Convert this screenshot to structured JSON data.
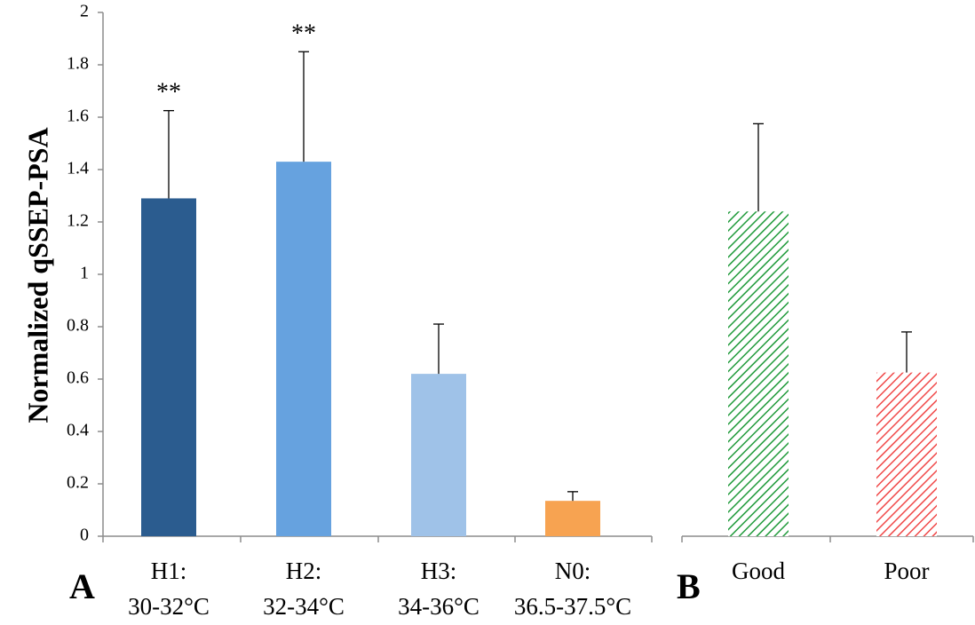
{
  "chart_data": [
    {
      "type": "bar",
      "panel_label": "A",
      "ylabel": "Normalized qSSEP-PSA",
      "ylim": [
        0,
        2
      ],
      "yticks": [
        "0",
        "0.2",
        "0.4",
        "0.6",
        "0.8",
        "1",
        "1.2",
        "1.4",
        "1.6",
        "1.8",
        "2"
      ],
      "categories": [
        {
          "line1": "H1:",
          "line2": "30-32°C"
        },
        {
          "line1": "H2:",
          "line2": "32-34°C"
        },
        {
          "line1": "H3:",
          "line2": "34-36°C"
        },
        {
          "line1": "N0:",
          "line2": "36.5-37.5°C"
        }
      ],
      "values": [
        1.29,
        1.43,
        0.62,
        0.135
      ],
      "error_upper": [
        1.625,
        1.85,
        0.81,
        0.17
      ],
      "significance": [
        "**",
        "**",
        "",
        ""
      ],
      "colors": [
        "#2b5c8f",
        "#66a2df",
        "#9fc2e8",
        "#f7a351"
      ],
      "grid": false
    },
    {
      "type": "bar",
      "panel_label": "B",
      "ylim": [
        0,
        2
      ],
      "categories": [
        {
          "line1": "Good",
          "line2": ""
        },
        {
          "line1": "Poor",
          "line2": ""
        }
      ],
      "values": [
        1.24,
        0.625
      ],
      "error_upper": [
        1.575,
        0.78
      ],
      "significance": [
        "",
        ""
      ],
      "colors": [
        "#1f9a3a",
        "#f04848"
      ],
      "pattern": "diagonal-hatch",
      "grid": false
    }
  ]
}
